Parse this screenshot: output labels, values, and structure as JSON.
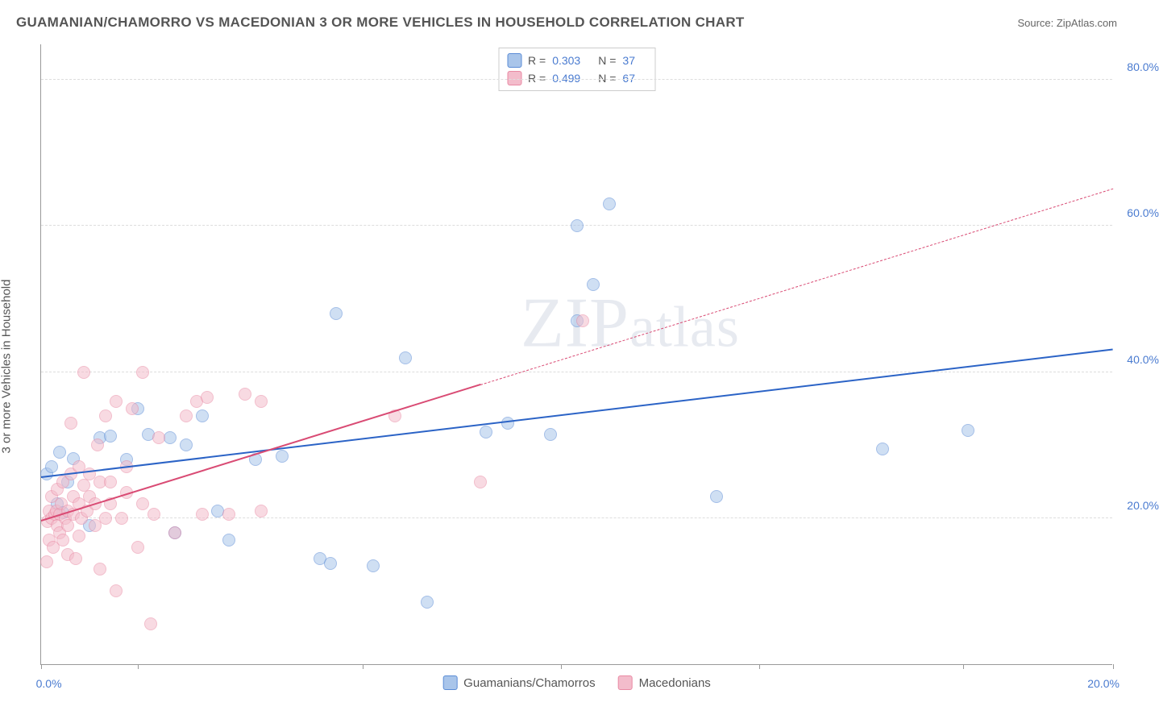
{
  "title": "GUAMANIAN/CHAMORRO VS MACEDONIAN 3 OR MORE VEHICLES IN HOUSEHOLD CORRELATION CHART",
  "source": "Source: ZipAtlas.com",
  "ylabel": "3 or more Vehicles in Household",
  "watermark": "ZIPatlas",
  "chart": {
    "type": "scatter",
    "xlim": [
      0,
      20
    ],
    "ylim": [
      0,
      85
    ],
    "xtick_positions": [
      0,
      1.8,
      6.0,
      9.7,
      13.4,
      17.2,
      20
    ],
    "xtick_labels": {
      "0": "0.0%",
      "20": "20.0%"
    },
    "yticks": [
      20,
      40,
      60,
      80
    ],
    "ytick_labels": [
      "20.0%",
      "40.0%",
      "60.0%",
      "80.0%"
    ],
    "background_color": "#ffffff",
    "grid_color": "#dddddd",
    "axis_color": "#999999",
    "tick_label_color": "#4a7bd0",
    "marker_radius": 8,
    "marker_opacity": 0.55,
    "series": [
      {
        "name": "Guamanians/Chamorros",
        "color_fill": "#a9c5ea",
        "color_stroke": "#5b8cd6",
        "R": "0.303",
        "N": "37",
        "trend": {
          "x1": 0,
          "y1": 25.5,
          "x2": 20,
          "y2": 43,
          "color": "#2b63c6",
          "width": 2,
          "dashed_from_x": null
        },
        "points": [
          [
            0.1,
            26
          ],
          [
            0.2,
            27
          ],
          [
            0.3,
            22
          ],
          [
            0.35,
            29
          ],
          [
            0.4,
            20.8
          ],
          [
            0.5,
            25
          ],
          [
            0.6,
            28.2
          ],
          [
            0.9,
            19
          ],
          [
            1.1,
            31
          ],
          [
            1.3,
            31.2
          ],
          [
            1.6,
            28
          ],
          [
            1.8,
            35
          ],
          [
            2.0,
            31.5
          ],
          [
            2.4,
            31
          ],
          [
            2.5,
            18
          ],
          [
            2.7,
            30
          ],
          [
            3.0,
            34
          ],
          [
            3.3,
            21
          ],
          [
            3.5,
            17
          ],
          [
            4.0,
            28
          ],
          [
            4.5,
            28.5
          ],
          [
            5.2,
            14.5
          ],
          [
            5.5,
            48
          ],
          [
            5.4,
            13.8
          ],
          [
            6.2,
            13.5
          ],
          [
            6.8,
            42
          ],
          [
            7.2,
            8.5
          ],
          [
            8.3,
            31.8
          ],
          [
            8.7,
            33
          ],
          [
            9.5,
            31.5
          ],
          [
            10.0,
            47
          ],
          [
            10.0,
            60
          ],
          [
            10.3,
            52
          ],
          [
            10.6,
            63
          ],
          [
            12.6,
            23
          ],
          [
            15.7,
            29.5
          ],
          [
            17.3,
            32
          ]
        ]
      },
      {
        "name": "Macedonians",
        "color_fill": "#f3bccb",
        "color_stroke": "#e989a3",
        "R": "0.499",
        "N": "67",
        "trend": {
          "x1": 0,
          "y1": 19.5,
          "x2": 20,
          "y2": 65,
          "color": "#d94b74",
          "width": 2,
          "dashed_from_x": 8.2
        },
        "points": [
          [
            0.1,
            14
          ],
          [
            0.12,
            19.5
          ],
          [
            0.15,
            17
          ],
          [
            0.15,
            21
          ],
          [
            0.2,
            20
          ],
          [
            0.2,
            23
          ],
          [
            0.22,
            16
          ],
          [
            0.25,
            20.5
          ],
          [
            0.28,
            21
          ],
          [
            0.3,
            19
          ],
          [
            0.3,
            24
          ],
          [
            0.35,
            18
          ],
          [
            0.35,
            20.5
          ],
          [
            0.38,
            22
          ],
          [
            0.4,
            17
          ],
          [
            0.4,
            25
          ],
          [
            0.45,
            20
          ],
          [
            0.5,
            15
          ],
          [
            0.5,
            19
          ],
          [
            0.5,
            21
          ],
          [
            0.55,
            26
          ],
          [
            0.55,
            33
          ],
          [
            0.6,
            20.5
          ],
          [
            0.6,
            23
          ],
          [
            0.65,
            14.5
          ],
          [
            0.7,
            17.5
          ],
          [
            0.7,
            22
          ],
          [
            0.7,
            27
          ],
          [
            0.75,
            20
          ],
          [
            0.8,
            24.5
          ],
          [
            0.8,
            40
          ],
          [
            0.85,
            21
          ],
          [
            0.9,
            23
          ],
          [
            0.9,
            26
          ],
          [
            1.0,
            19
          ],
          [
            1.0,
            22
          ],
          [
            1.05,
            30
          ],
          [
            1.1,
            13
          ],
          [
            1.1,
            25
          ],
          [
            1.2,
            20
          ],
          [
            1.2,
            34
          ],
          [
            1.3,
            22
          ],
          [
            1.3,
            25
          ],
          [
            1.4,
            10
          ],
          [
            1.4,
            36
          ],
          [
            1.5,
            20
          ],
          [
            1.6,
            23.5
          ],
          [
            1.6,
            27
          ],
          [
            1.7,
            35
          ],
          [
            1.8,
            16
          ],
          [
            1.9,
            22
          ],
          [
            1.9,
            40
          ],
          [
            2.05,
            5.5
          ],
          [
            2.1,
            20.5
          ],
          [
            2.2,
            31
          ],
          [
            2.5,
            18
          ],
          [
            2.7,
            34
          ],
          [
            2.9,
            36
          ],
          [
            3.0,
            20.5
          ],
          [
            3.1,
            36.5
          ],
          [
            3.5,
            20.5
          ],
          [
            3.8,
            37
          ],
          [
            4.1,
            21
          ],
          [
            4.1,
            36
          ],
          [
            6.6,
            34
          ],
          [
            8.2,
            25
          ],
          [
            10.1,
            47
          ]
        ]
      }
    ]
  },
  "legend_top_label_R": "R =",
  "legend_top_label_N": "N ="
}
